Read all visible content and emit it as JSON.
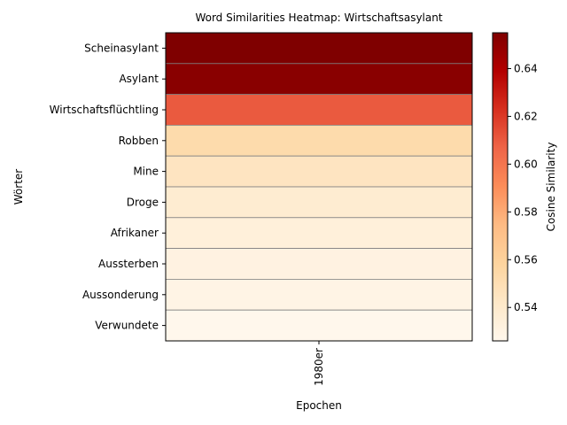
{
  "chart_data": {
    "type": "heatmap",
    "title": "Word Similarities Heatmap: Wirtschaftsasylant",
    "xlabel": "Epochen",
    "ylabel": "Wörter",
    "x_categories": [
      "1980er"
    ],
    "y_categories": [
      "Scheinasylant",
      "Asylant",
      "Wirtschaftsflüchtling",
      "Robben",
      "Mine",
      "Droge",
      "Afrikaner",
      "Aussterben",
      "Aussonderung",
      "Verwundete"
    ],
    "values": [
      [
        0.655
      ],
      [
        0.652
      ],
      [
        0.61
      ],
      [
        0.553
      ],
      [
        0.545
      ],
      [
        0.538
      ],
      [
        0.534
      ],
      [
        0.531
      ],
      [
        0.529
      ],
      [
        0.526
      ]
    ],
    "colorbar": {
      "label": "Cosine Similarity",
      "colormap": "OrRd",
      "range": [
        0.526,
        0.655
      ],
      "ticks": [
        0.54,
        0.56,
        0.58,
        0.6,
        0.62,
        0.64
      ]
    },
    "grid": true,
    "colors": {
      "cell_border": "#808080",
      "colormap_stops": [
        "#fff7ec",
        "#fee8c8",
        "#fdd49e",
        "#fdbb84",
        "#fc8d59",
        "#ef6548",
        "#d7301f",
        "#b30000",
        "#7f0000"
      ]
    }
  }
}
